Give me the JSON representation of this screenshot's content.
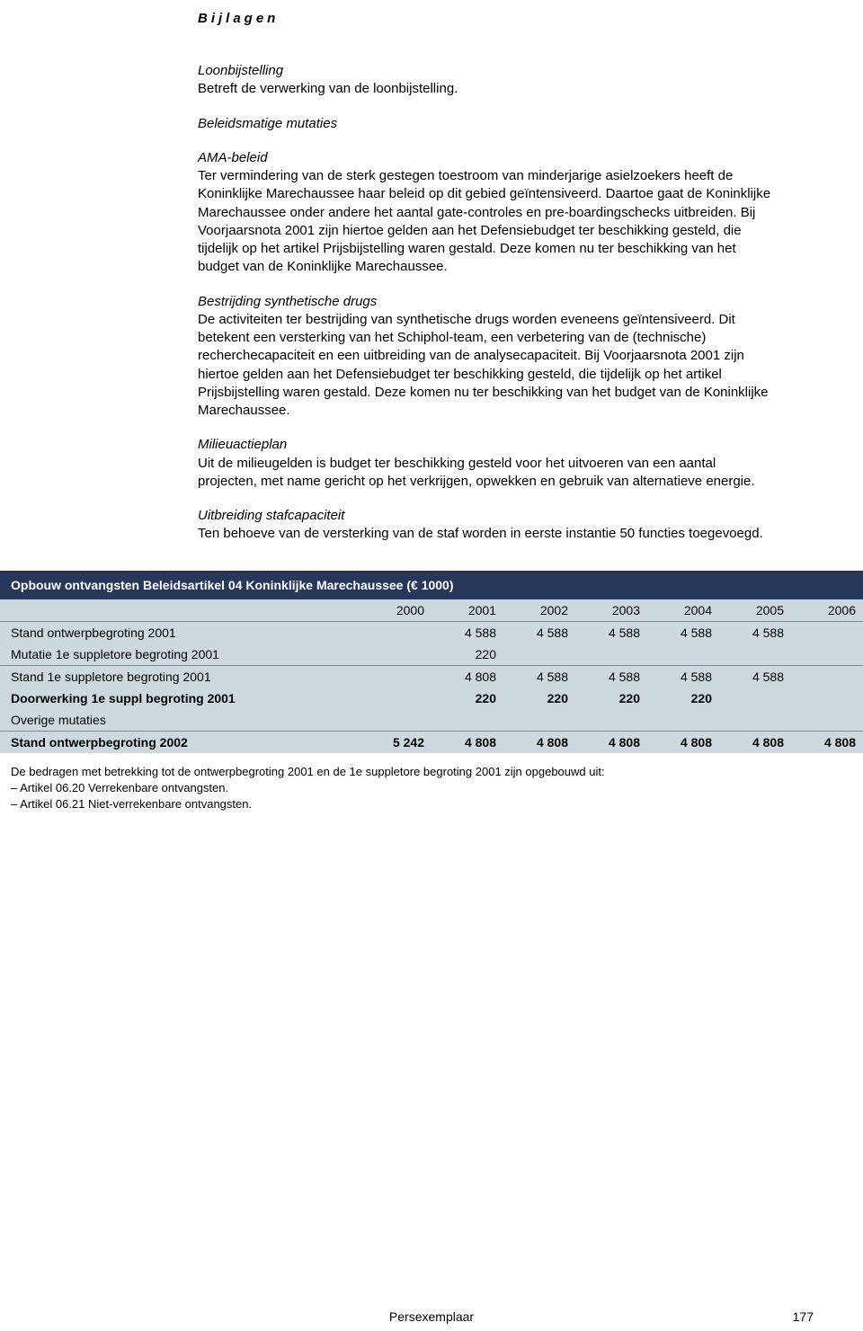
{
  "header": {
    "bijlagen": "Bijlagen"
  },
  "sections": {
    "loon": {
      "title": "Loonbijstelling",
      "body": "Betreft de verwerking van de loonbijstelling."
    },
    "beleid": {
      "title": "Beleidsmatige mutaties"
    },
    "ama": {
      "title": "AMA-beleid",
      "body": "Ter vermindering van de sterk gestegen toestroom van minderjarige asielzoekers heeft de Koninklijke Marechaussee haar beleid op dit gebied geïntensiveerd. Daartoe gaat de Koninklijke Marechaussee onder andere het aantal gate-controles en pre-boardingschecks uitbreiden. Bij Voorjaarsnota 2001 zijn hiertoe gelden aan het Defensiebudget ter beschikking gesteld, die tijdelijk op het artikel Prijsbijstelling waren gestald. Deze komen nu ter beschikking van het budget van de Koninklijke Marechaussee."
    },
    "drugs": {
      "title": "Bestrijding synthetische drugs",
      "body": "De activiteiten ter bestrijding van synthetische drugs worden eveneens geïntensiveerd. Dit betekent een versterking van het Schiphol-team, een verbetering van de (technische) recherchecapaciteit en een uitbreiding van de analysecapaciteit. Bij Voorjaarsnota 2001 zijn hiertoe gelden aan het Defensiebudget ter beschikking gesteld, die tijdelijk op het artikel Prijsbijstelling waren gestald. Deze komen nu ter beschikking van het budget van de Koninklijke Marechaussee."
    },
    "milieu": {
      "title": "Milieuactieplan",
      "body": "Uit de milieugelden is budget ter beschikking gesteld voor het uitvoeren van een aantal projecten, met name gericht op het verkrijgen, opwekken en gebruik van alternatieve energie."
    },
    "staf": {
      "title": "Uitbreiding stafcapaciteit",
      "body": "Ten behoeve van de versterking van de staf worden in eerste instantie 50 functies toegevoegd."
    }
  },
  "table": {
    "title": "Opbouw ontvangsten Beleidsartikel 04 Koninklijke Marechaussee (€ 1000)",
    "title_bg": "#26375a",
    "title_color": "#ffffff",
    "body_bg": "#cdd9df",
    "years": [
      "2000",
      "2001",
      "2002",
      "2003",
      "2004",
      "2005",
      "2006"
    ],
    "rows": [
      {
        "label": "Stand ontwerpbegroting 2001",
        "vals": [
          "",
          "4 588",
          "4 588",
          "4 588",
          "4 588",
          "4 588",
          ""
        ],
        "bold": false
      },
      {
        "label": "Mutatie 1e suppletore begroting 2001",
        "vals": [
          "",
          "220",
          "",
          "",
          "",
          "",
          ""
        ],
        "bold": false,
        "divider_after": true
      },
      {
        "label": "Stand 1e suppletore begroting 2001",
        "vals": [
          "",
          "4 808",
          "4 588",
          "4 588",
          "4 588",
          "4 588",
          ""
        ],
        "bold": false
      },
      {
        "label": "Doorwerking 1e suppl begroting 2001",
        "vals": [
          "",
          "220",
          "220",
          "220",
          "220",
          "",
          ""
        ],
        "bold": true
      },
      {
        "label": "Overige mutaties",
        "vals": [
          "",
          "",
          "",
          "",
          "",
          "",
          ""
        ],
        "bold": false,
        "divider_after": true
      },
      {
        "label": "Stand ontwerpbegroting 2002",
        "vals": [
          "5 242",
          "4 808",
          "4 808",
          "4 808",
          "4 808",
          "4 808",
          "4 808"
        ],
        "bold": true
      }
    ]
  },
  "footnotes": {
    "intro": "De bedragen met betrekking tot de ontwerpbegroting 2001 en de 1e suppletore begroting 2001 zijn opgebouwd uit:",
    "items": [
      "– Artikel 06.20 Verrekenbare ontvangsten.",
      "– Artikel 06.21 Niet-verrekenbare ontvangsten."
    ]
  },
  "footer": {
    "center": "Persexemplaar",
    "page": "177"
  }
}
